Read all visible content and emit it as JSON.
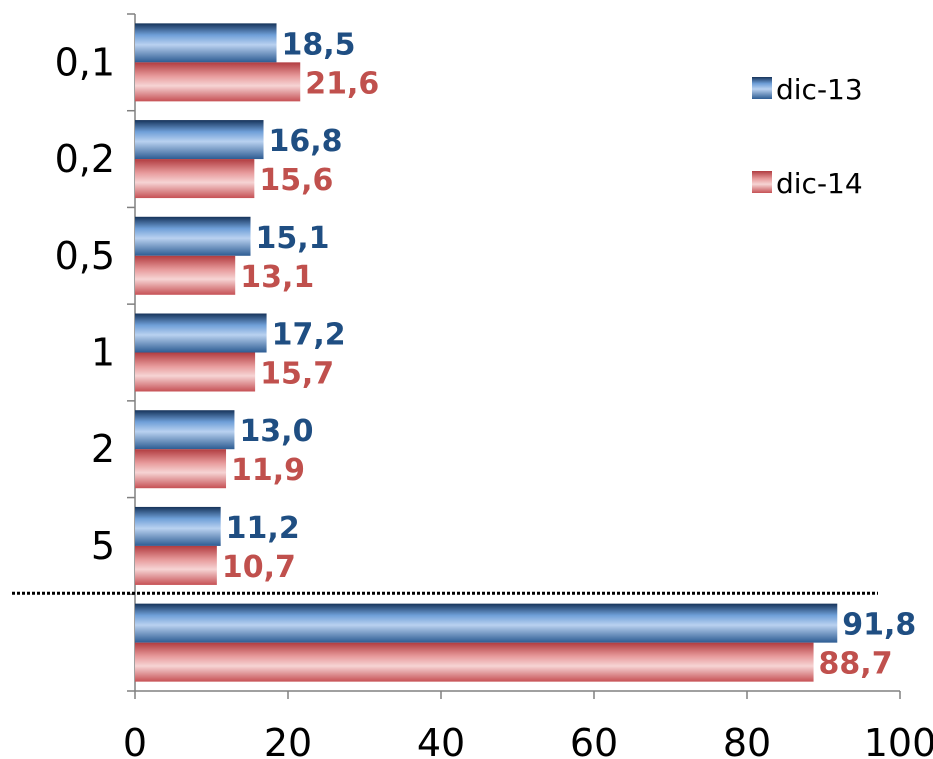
{
  "chart_data": {
    "type": "bar",
    "orientation": "horizontal",
    "categories": [
      "0,1",
      "0,2",
      "0,5",
      "1",
      "2",
      "5",
      ""
    ],
    "series": [
      {
        "name": "dic-13",
        "color": "#2e5f96",
        "label_color": "#1f4e82",
        "values": [
          18.5,
          16.8,
          15.1,
          17.2,
          13.0,
          11.2,
          91.8
        ],
        "labels": [
          "18,5",
          "16,8",
          "15,1",
          "17,2",
          "13,0",
          "11,2",
          "91,8"
        ]
      },
      {
        "name": "dic-14",
        "color": "#c9585c",
        "label_color": "#c0504d",
        "values": [
          21.6,
          15.6,
          13.1,
          15.7,
          11.9,
          10.7,
          88.7
        ],
        "labels": [
          "21,6",
          "15,6",
          "13,1",
          "15,7",
          "11,9",
          "10,7",
          "88,7"
        ]
      }
    ],
    "x_ticks": [
      "0",
      "20",
      "40",
      "60",
      "80",
      "100"
    ],
    "xlim": [
      0,
      100
    ],
    "title": "",
    "xlabel": "",
    "ylabel": "",
    "grid": false,
    "legend_position": "top-right",
    "separator_line": "dotted"
  }
}
